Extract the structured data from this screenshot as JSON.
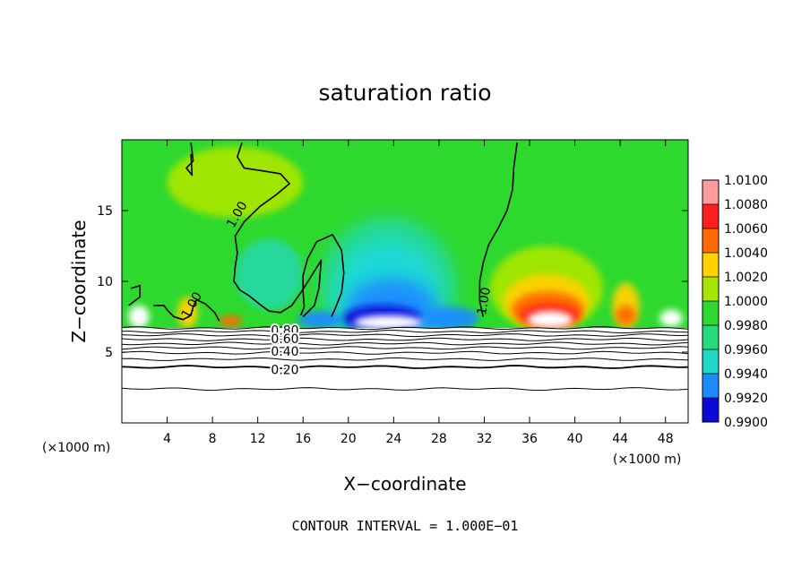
{
  "chart_data": {
    "type": "heatmap",
    "title": "saturation ratio",
    "xlabel": "X−coordinate",
    "ylabel": "Z−coordinate",
    "x_unit_left": "(×1000 m)",
    "x_unit_right": "(×1000 m)",
    "footer": "CONTOUR INTERVAL = 1.000E−01",
    "xlim": [
      0,
      50
    ],
    "ylim": [
      0,
      20
    ],
    "x_ticks": [
      4,
      8,
      12,
      16,
      20,
      24,
      28,
      32,
      36,
      40,
      44,
      48
    ],
    "y_ticks": [
      5,
      10,
      15
    ],
    "grid": false,
    "colorbar": {
      "labels": [
        "1.0100",
        "1.0080",
        "1.0060",
        "1.0040",
        "1.0020",
        "1.0000",
        "0.9980",
        "0.9960",
        "0.9940",
        "0.9920",
        "0.9900"
      ],
      "colors": [
        "#ff9c9c",
        "#ff1f1f",
        "#ff6a00",
        "#ffd200",
        "#a6e600",
        "#2ed92e",
        "#26d97a",
        "#1ed9c8",
        "#1a8cff",
        "#0b0bd8",
        "#7a00b8"
      ]
    },
    "background_color": "#2ed92e",
    "contour_labels": [
      {
        "text": "1.00",
        "x": 10.2,
        "y": 14.7,
        "angle": -60
      },
      {
        "text": "1.00",
        "x": 6.2,
        "y": 8.3,
        "angle": -60
      },
      {
        "text": "1.00",
        "x": 32.0,
        "y": 8.6,
        "angle": -80
      },
      {
        "text": "0.80",
        "x": 14.4,
        "y": 6.5,
        "angle": 0
      },
      {
        "text": "0.60",
        "x": 14.4,
        "y": 5.9,
        "angle": 0
      },
      {
        "text": "0.40",
        "x": 14.4,
        "y": 5.0,
        "angle": 0
      },
      {
        "text": "0.20",
        "x": 14.4,
        "y": 3.7,
        "angle": 0
      }
    ],
    "low_level_contours": [
      6.7,
      6.45,
      6.2,
      5.9,
      5.6,
      5.3,
      4.95,
      4.5,
      3.95,
      2.4
    ],
    "dry_patches": [
      {
        "cx": 23.5,
        "cy": 7.1,
        "rx": 3.0,
        "ry": 0.5
      },
      {
        "cx": 37.8,
        "cy": 7.3,
        "rx": 2.0,
        "ry": 0.6
      },
      {
        "cx": 1.5,
        "cy": 7.5,
        "rx": 0.9,
        "ry": 0.8
      },
      {
        "cx": 48.5,
        "cy": 7.4,
        "rx": 1.0,
        "ry": 0.6
      }
    ],
    "anomalies": [
      {
        "kind": "dry",
        "color": "#26d9a0",
        "cx": 23.5,
        "cy": 9.5,
        "rx": 6.0,
        "ry": 5.0
      },
      {
        "kind": "dry",
        "color": "#1ed9d9",
        "cx": 23.5,
        "cy": 9.0,
        "rx": 4.5,
        "ry": 3.8
      },
      {
        "kind": "dry",
        "color": "#1a8cff",
        "cx": 23.8,
        "cy": 8.0,
        "rx": 4.0,
        "ry": 2.2
      },
      {
        "kind": "dry",
        "color": "#0b0bd8",
        "cx": 23.0,
        "cy": 7.4,
        "rx": 3.5,
        "ry": 0.9
      },
      {
        "kind": "dry",
        "color": "#1a8cff",
        "cx": 29.0,
        "cy": 7.4,
        "rx": 2.5,
        "ry": 0.8
      },
      {
        "kind": "dry",
        "color": "#1a8cff",
        "cx": 17.5,
        "cy": 7.3,
        "rx": 2.0,
        "ry": 0.6
      },
      {
        "kind": "dry",
        "color": "#26d9a0",
        "cx": 13.0,
        "cy": 10.5,
        "rx": 3.0,
        "ry": 2.5
      },
      {
        "kind": "moist",
        "color": "#a6e600",
        "cx": 37.5,
        "cy": 9.5,
        "rx": 5.0,
        "ry": 3.0
      },
      {
        "kind": "moist",
        "color": "#ffd200",
        "cx": 37.5,
        "cy": 8.6,
        "rx": 3.8,
        "ry": 1.9
      },
      {
        "kind": "moist",
        "color": "#ff6a00",
        "cx": 37.6,
        "cy": 8.0,
        "rx": 3.2,
        "ry": 1.3
      },
      {
        "kind": "moist",
        "color": "#ff1f1f",
        "cx": 37.8,
        "cy": 7.6,
        "rx": 2.6,
        "ry": 0.8
      },
      {
        "kind": "moist",
        "color": "#ffd200",
        "cx": 44.5,
        "cy": 8.3,
        "rx": 1.2,
        "ry": 1.6
      },
      {
        "kind": "moist",
        "color": "#ff6a00",
        "cx": 44.5,
        "cy": 7.6,
        "rx": 0.9,
        "ry": 0.7
      },
      {
        "kind": "moist",
        "color": "#ffd200",
        "cx": 5.8,
        "cy": 7.8,
        "rx": 0.9,
        "ry": 1.1
      },
      {
        "kind": "moist",
        "color": "#ff6a00",
        "cx": 9.6,
        "cy": 7.2,
        "rx": 1.0,
        "ry": 0.4
      },
      {
        "kind": "moist",
        "color": "#a6e600",
        "cx": 10.0,
        "cy": 17.0,
        "rx": 6.0,
        "ry": 2.5
      }
    ],
    "contour_lines_unity": [
      [
        [
          6.1,
          19.8
        ],
        [
          6.3,
          18.5
        ],
        [
          5.7,
          18.0
        ],
        [
          6.2,
          17.5
        ],
        [
          6.1,
          19.0
        ]
      ],
      [
        [
          10.6,
          19.8
        ],
        [
          10.2,
          18.8
        ],
        [
          10.8,
          18.0
        ],
        [
          12.5,
          17.8
        ],
        [
          14.0,
          17.6
        ],
        [
          14.8,
          16.9
        ],
        [
          13.6,
          16.1
        ],
        [
          12.2,
          15.3
        ],
        [
          10.8,
          14.2
        ],
        [
          10.0,
          13.2
        ],
        [
          10.2,
          12.0
        ],
        [
          10.0,
          11.0
        ],
        [
          9.9,
          10.0
        ],
        [
          10.4,
          9.4
        ],
        [
          11.2,
          9.0
        ],
        [
          12.3,
          8.3
        ],
        [
          13.0,
          7.9
        ],
        [
          14.0,
          7.8
        ],
        [
          15.0,
          8.3
        ],
        [
          15.8,
          9.2
        ],
        [
          16.6,
          10.2
        ],
        [
          17.6,
          11.5
        ],
        [
          17.4,
          9.5
        ],
        [
          17.0,
          8.3
        ],
        [
          16.0,
          7.5
        ]
      ],
      [
        [
          15.8,
          7.6
        ],
        [
          16.1,
          8.2
        ],
        [
          16.0,
          9.3
        ],
        [
          16.0,
          10.4
        ],
        [
          16.4,
          11.6
        ],
        [
          17.2,
          12.8
        ],
        [
          18.6,
          13.3
        ],
        [
          19.4,
          12.2
        ],
        [
          19.6,
          10.6
        ],
        [
          19.4,
          9.2
        ],
        [
          18.8,
          8.0
        ],
        [
          18.5,
          7.5
        ]
      ],
      [
        [
          34.9,
          19.8
        ],
        [
          34.6,
          18.0
        ],
        [
          34.5,
          16.5
        ],
        [
          34.0,
          15.0
        ],
        [
          33.2,
          13.7
        ],
        [
          32.4,
          12.6
        ],
        [
          31.9,
          11.3
        ],
        [
          31.6,
          10.0
        ],
        [
          31.6,
          8.6
        ],
        [
          31.9,
          7.5
        ]
      ],
      [
        [
          0.8,
          9.5
        ],
        [
          1.6,
          9.7
        ],
        [
          1.6,
          8.9
        ],
        [
          0.6,
          8.3
        ]
      ],
      [
        [
          2.8,
          8.3
        ],
        [
          3.7,
          8.3
        ],
        [
          4.1,
          7.9
        ],
        [
          4.6,
          7.5
        ],
        [
          5.4,
          7.3
        ],
        [
          6.1,
          7.6
        ],
        [
          6.3,
          8.2
        ],
        [
          6.6,
          8.7
        ],
        [
          7.4,
          8.4
        ],
        [
          8.2,
          7.8
        ],
        [
          8.6,
          7.2
        ]
      ]
    ]
  }
}
